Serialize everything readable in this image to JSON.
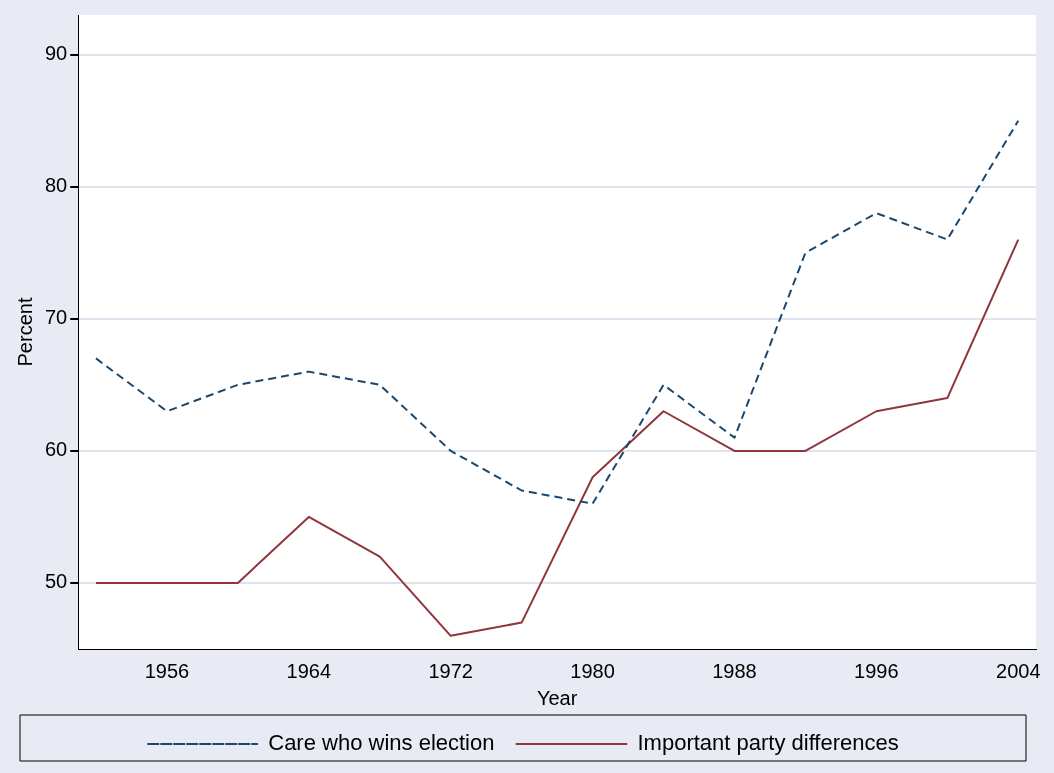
{
  "chart_data": {
    "type": "line",
    "xlabel": "Year",
    "ylabel": "Percent",
    "x": [
      1952,
      1956,
      1960,
      1964,
      1968,
      1972,
      1976,
      1980,
      1984,
      1988,
      1992,
      1996,
      2000,
      2004
    ],
    "series": [
      {
        "name": "Care who wins election",
        "color": "#1a476f",
        "line_style": "dashed",
        "values": [
          67,
          63,
          65,
          66,
          65,
          60,
          57,
          56,
          65,
          61,
          75,
          78,
          76,
          85
        ]
      },
      {
        "name": "Important party differences",
        "color": "#90353b",
        "line_style": "solid",
        "values": [
          50,
          50,
          50,
          55,
          52,
          46,
          47,
          58,
          63,
          60,
          60,
          63,
          64,
          76
        ]
      }
    ],
    "xlim": [
      1951,
      2005
    ],
    "xticks": [
      1956,
      1964,
      1972,
      1980,
      1988,
      1996,
      2004
    ],
    "ylim": [
      45,
      93
    ],
    "yticks": [
      50,
      60,
      70,
      80,
      90
    ],
    "grid": "y",
    "legend": "bottom",
    "marker": "none"
  }
}
